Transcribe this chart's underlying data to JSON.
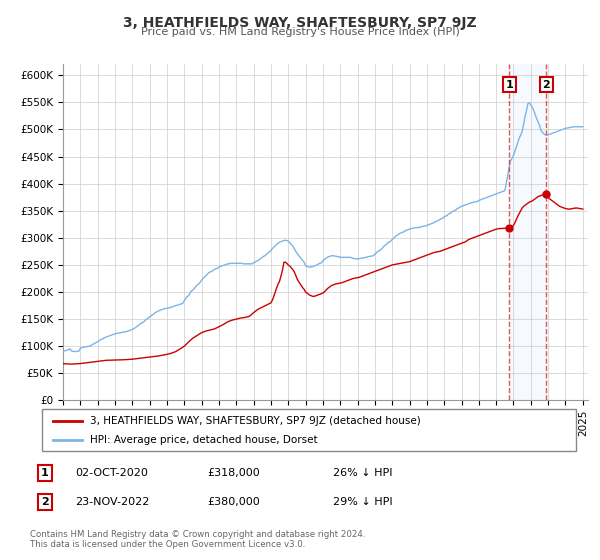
{
  "title": "3, HEATHFIELDS WAY, SHAFTESBURY, SP7 9JZ",
  "subtitle": "Price paid vs. HM Land Registry's House Price Index (HPI)",
  "ylim": [
    0,
    620000
  ],
  "xlim_start": 1995.0,
  "xlim_end": 2025.3,
  "yticks": [
    0,
    50000,
    100000,
    150000,
    200000,
    250000,
    300000,
    350000,
    400000,
    450000,
    500000,
    550000,
    600000
  ],
  "ytick_labels": [
    "£0",
    "£50K",
    "£100K",
    "£150K",
    "£200K",
    "£250K",
    "£300K",
    "£350K",
    "£400K",
    "£450K",
    "£500K",
    "£550K",
    "£600K"
  ],
  "xticks": [
    1995,
    1996,
    1997,
    1998,
    1999,
    2000,
    2001,
    2002,
    2003,
    2004,
    2005,
    2006,
    2007,
    2008,
    2009,
    2010,
    2011,
    2012,
    2013,
    2014,
    2015,
    2016,
    2017,
    2018,
    2019,
    2020,
    2021,
    2022,
    2023,
    2024,
    2025
  ],
  "grid_color": "#cccccc",
  "hpi_color": "#7cb4e8",
  "price_color": "#cc0000",
  "shade_color": "#ddeeff",
  "vline_color": "#dd4444",
  "marker1_date": 2020.75,
  "marker1_price": 318000,
  "marker1_label": "1",
  "marker2_date": 2022.9,
  "marker2_price": 380000,
  "marker2_label": "2",
  "annotation1_date": "02-OCT-2020",
  "annotation1_price": "£318,000",
  "annotation1_pct": "26% ↓ HPI",
  "annotation2_date": "23-NOV-2022",
  "annotation2_price": "£380,000",
  "annotation2_pct": "29% ↓ HPI",
  "legend_label1": "3, HEATHFIELDS WAY, SHAFTESBURY, SP7 9JZ (detached house)",
  "legend_label2": "HPI: Average price, detached house, Dorset",
  "footer1": "Contains HM Land Registry data © Crown copyright and database right 2024.",
  "footer2": "This data is licensed under the Open Government Licence v3.0.",
  "hpi_x": [
    1995.0,
    1995.083,
    1995.167,
    1995.25,
    1995.333,
    1995.417,
    1995.5,
    1995.583,
    1995.667,
    1995.75,
    1995.833,
    1995.917,
    1996.0,
    1996.083,
    1996.167,
    1996.25,
    1996.333,
    1996.417,
    1996.5,
    1996.583,
    1996.667,
    1996.75,
    1996.833,
    1996.917,
    1997.0,
    1997.083,
    1997.167,
    1997.25,
    1997.333,
    1997.417,
    1997.5,
    1997.583,
    1997.667,
    1997.75,
    1997.833,
    1997.917,
    1998.0,
    1998.083,
    1998.167,
    1998.25,
    1998.333,
    1998.417,
    1998.5,
    1998.583,
    1998.667,
    1998.75,
    1998.833,
    1998.917,
    1999.0,
    1999.083,
    1999.167,
    1999.25,
    1999.333,
    1999.417,
    1999.5,
    1999.583,
    1999.667,
    1999.75,
    1999.833,
    1999.917,
    2000.0,
    2000.083,
    2000.167,
    2000.25,
    2000.333,
    2000.417,
    2000.5,
    2000.583,
    2000.667,
    2000.75,
    2000.833,
    2000.917,
    2001.0,
    2001.083,
    2001.167,
    2001.25,
    2001.333,
    2001.417,
    2001.5,
    2001.583,
    2001.667,
    2001.75,
    2001.833,
    2001.917,
    2002.0,
    2002.083,
    2002.167,
    2002.25,
    2002.333,
    2002.417,
    2002.5,
    2002.583,
    2002.667,
    2002.75,
    2002.833,
    2002.917,
    2003.0,
    2003.083,
    2003.167,
    2003.25,
    2003.333,
    2003.417,
    2003.5,
    2003.583,
    2003.667,
    2003.75,
    2003.833,
    2003.917,
    2004.0,
    2004.083,
    2004.167,
    2004.25,
    2004.333,
    2004.417,
    2004.5,
    2004.583,
    2004.667,
    2004.75,
    2004.833,
    2004.917,
    2005.0,
    2005.083,
    2005.167,
    2005.25,
    2005.333,
    2005.417,
    2005.5,
    2005.583,
    2005.667,
    2005.75,
    2005.833,
    2005.917,
    2006.0,
    2006.083,
    2006.167,
    2006.25,
    2006.333,
    2006.417,
    2006.5,
    2006.583,
    2006.667,
    2006.75,
    2006.833,
    2006.917,
    2007.0,
    2007.083,
    2007.167,
    2007.25,
    2007.333,
    2007.417,
    2007.5,
    2007.583,
    2007.667,
    2007.75,
    2007.833,
    2007.917,
    2008.0,
    2008.083,
    2008.167,
    2008.25,
    2008.333,
    2008.417,
    2008.5,
    2008.583,
    2008.667,
    2008.75,
    2008.833,
    2008.917,
    2009.0,
    2009.083,
    2009.167,
    2009.25,
    2009.333,
    2009.417,
    2009.5,
    2009.583,
    2009.667,
    2009.75,
    2009.833,
    2009.917,
    2010.0,
    2010.083,
    2010.167,
    2010.25,
    2010.333,
    2010.417,
    2010.5,
    2010.583,
    2010.667,
    2010.75,
    2010.833,
    2010.917,
    2011.0,
    2011.083,
    2011.167,
    2011.25,
    2011.333,
    2011.417,
    2011.5,
    2011.583,
    2011.667,
    2011.75,
    2011.833,
    2011.917,
    2012.0,
    2012.083,
    2012.167,
    2012.25,
    2012.333,
    2012.417,
    2012.5,
    2012.583,
    2012.667,
    2012.75,
    2012.833,
    2012.917,
    2013.0,
    2013.083,
    2013.167,
    2013.25,
    2013.333,
    2013.417,
    2013.5,
    2013.583,
    2013.667,
    2013.75,
    2013.833,
    2013.917,
    2014.0,
    2014.083,
    2014.167,
    2014.25,
    2014.333,
    2014.417,
    2014.5,
    2014.583,
    2014.667,
    2014.75,
    2014.833,
    2014.917,
    2015.0,
    2015.083,
    2015.167,
    2015.25,
    2015.333,
    2015.417,
    2015.5,
    2015.583,
    2015.667,
    2015.75,
    2015.833,
    2015.917,
    2016.0,
    2016.083,
    2016.167,
    2016.25,
    2016.333,
    2016.417,
    2016.5,
    2016.583,
    2016.667,
    2016.75,
    2016.833,
    2016.917,
    2017.0,
    2017.083,
    2017.167,
    2017.25,
    2017.333,
    2017.417,
    2017.5,
    2017.583,
    2017.667,
    2017.75,
    2017.833,
    2017.917,
    2018.0,
    2018.083,
    2018.167,
    2018.25,
    2018.333,
    2018.417,
    2018.5,
    2018.583,
    2018.667,
    2018.75,
    2018.833,
    2018.917,
    2019.0,
    2019.083,
    2019.167,
    2019.25,
    2019.333,
    2019.417,
    2019.5,
    2019.583,
    2019.667,
    2019.75,
    2019.833,
    2019.917,
    2020.0,
    2020.083,
    2020.167,
    2020.25,
    2020.333,
    2020.417,
    2020.5,
    2020.583,
    2020.667,
    2020.75,
    2020.833,
    2020.917,
    2021.0,
    2021.083,
    2021.167,
    2021.25,
    2021.333,
    2021.417,
    2021.5,
    2021.583,
    2021.667,
    2021.75,
    2021.833,
    2021.917,
    2022.0,
    2022.083,
    2022.167,
    2022.25,
    2022.333,
    2022.417,
    2022.5,
    2022.583,
    2022.667,
    2022.75,
    2022.833,
    2022.917,
    2023.0,
    2023.083,
    2023.167,
    2023.25,
    2023.333,
    2023.417,
    2023.5,
    2023.583,
    2023.667,
    2023.75,
    2023.833,
    2023.917,
    2024.0,
    2024.083,
    2024.167,
    2024.25,
    2024.333,
    2024.417,
    2024.5,
    2024.583,
    2024.667,
    2024.75,
    2024.833,
    2024.917,
    2025.0
  ],
  "hpi_y": [
    91000,
    91500,
    92000,
    93000,
    94000,
    95000,
    91000,
    90500,
    90000,
    90200,
    90500,
    91000,
    96000,
    97000,
    98000,
    98500,
    99000,
    99500,
    100000,
    101000,
    102000,
    104000,
    105500,
    107000,
    108000,
    110000,
    112000,
    113000,
    114500,
    116000,
    117000,
    118000,
    119000,
    120000,
    121000,
    122000,
    123000,
    123500,
    124000,
    124500,
    125000,
    125500,
    126000,
    126500,
    127000,
    128000,
    129000,
    130000,
    131000,
    132500,
    134000,
    136000,
    138000,
    140000,
    142000,
    143500,
    145000,
    148000,
    150000,
    152000,
    154000,
    156000,
    158000,
    160000,
    162000,
    163500,
    165000,
    166000,
    167000,
    168000,
    169000,
    169500,
    170000,
    170500,
    171000,
    172000,
    173000,
    174000,
    175000,
    175500,
    176500,
    177500,
    178000,
    179500,
    184000,
    188000,
    192000,
    193000,
    198000,
    202000,
    204000,
    207000,
    210000,
    213000,
    215000,
    218000,
    222000,
    225000,
    228000,
    230000,
    233000,
    236000,
    237000,
    238000,
    240000,
    242000,
    243000,
    244000,
    246000,
    247000,
    248000,
    249000,
    250000,
    251000,
    252000,
    252000,
    253000,
    253000,
    253000,
    253000,
    253000,
    253000,
    253000,
    253000,
    253000,
    252000,
    252000,
    252000,
    252000,
    252000,
    252000,
    252000,
    254000,
    255000,
    257000,
    258000,
    260000,
    262000,
    264000,
    266000,
    267000,
    270000,
    272000,
    274000,
    277000,
    280000,
    283000,
    285000,
    288000,
    290000,
    292000,
    293000,
    294000,
    295000,
    295500,
    295000,
    294000,
    291000,
    288000,
    285000,
    281000,
    276000,
    272000,
    268000,
    265000,
    261000,
    258000,
    255000,
    248000,
    247000,
    246500,
    246000,
    246500,
    247000,
    248000,
    249000,
    250000,
    252000,
    253000,
    254000,
    258000,
    260000,
    262000,
    264000,
    265000,
    266000,
    267000,
    267000,
    266500,
    266000,
    265500,
    265000,
    264000,
    264000,
    264000,
    264000,
    264000,
    264000,
    264000,
    264000,
    263000,
    262000,
    261500,
    261000,
    261000,
    261500,
    262000,
    262500,
    263000,
    263500,
    264000,
    265000,
    265500,
    266000,
    266500,
    267000,
    270000,
    272000,
    275000,
    276000,
    278000,
    280000,
    284000,
    286000,
    288000,
    291000,
    292000,
    294000,
    297000,
    299000,
    302000,
    304000,
    306000,
    308000,
    309000,
    310000,
    311000,
    313000,
    314000,
    315000,
    316000,
    317000,
    317500,
    318000,
    318500,
    319000,
    319000,
    319500,
    320000,
    321000,
    321500,
    322000,
    323000,
    324000,
    325000,
    326000,
    327000,
    328000,
    330000,
    331000,
    332000,
    334000,
    335000,
    336000,
    339000,
    340000,
    341000,
    344000,
    345000,
    347000,
    349000,
    350000,
    351000,
    354000,
    355000,
    357000,
    358000,
    359000,
    360000,
    361000,
    362000,
    363000,
    364000,
    365000,
    365500,
    366000,
    366500,
    367000,
    369000,
    370000,
    371000,
    372000,
    373000,
    374000,
    375000,
    376000,
    377000,
    378000,
    379000,
    380000,
    381000,
    382000,
    383000,
    384000,
    385000,
    386000,
    387000,
    400000,
    415000,
    430000,
    442000,
    447000,
    452000,
    460000,
    468000,
    476000,
    484000,
    490000,
    496000,
    510000,
    524000,
    535000,
    548000,
    549000,
    545000,
    541000,
    535000,
    528000,
    520000,
    514000,
    508000,
    498000,
    495000,
    492000,
    490000,
    490000,
    490000,
    491000,
    492000,
    493000,
    494000,
    495000,
    496000,
    497000,
    498000,
    499000,
    500000,
    501000,
    502000,
    502500,
    503000,
    503500,
    504000,
    504500,
    505000,
    505000,
    505000,
    505000,
    505000,
    505000,
    505000
  ]
}
